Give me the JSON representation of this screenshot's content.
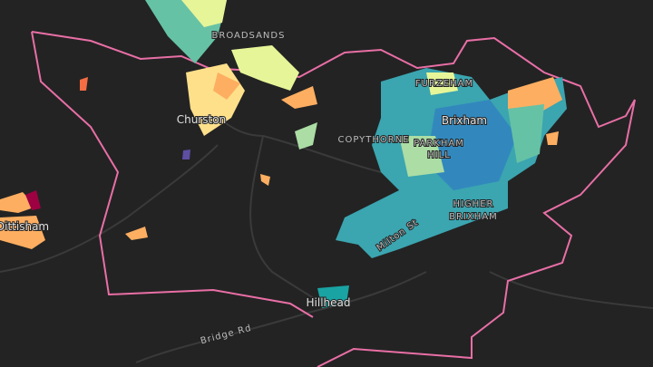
{
  "map": {
    "labels": [
      "BROADSANDS",
      "FURZEHAM",
      "Brixham",
      "COPYTHORNE",
      "PARKHAM",
      "HILL",
      "HIGHER",
      "BRIXHAM",
      "Milton St",
      "Churston",
      "Hillhead",
      "Bridge Rd",
      "Dittisham"
    ]
  }
}
